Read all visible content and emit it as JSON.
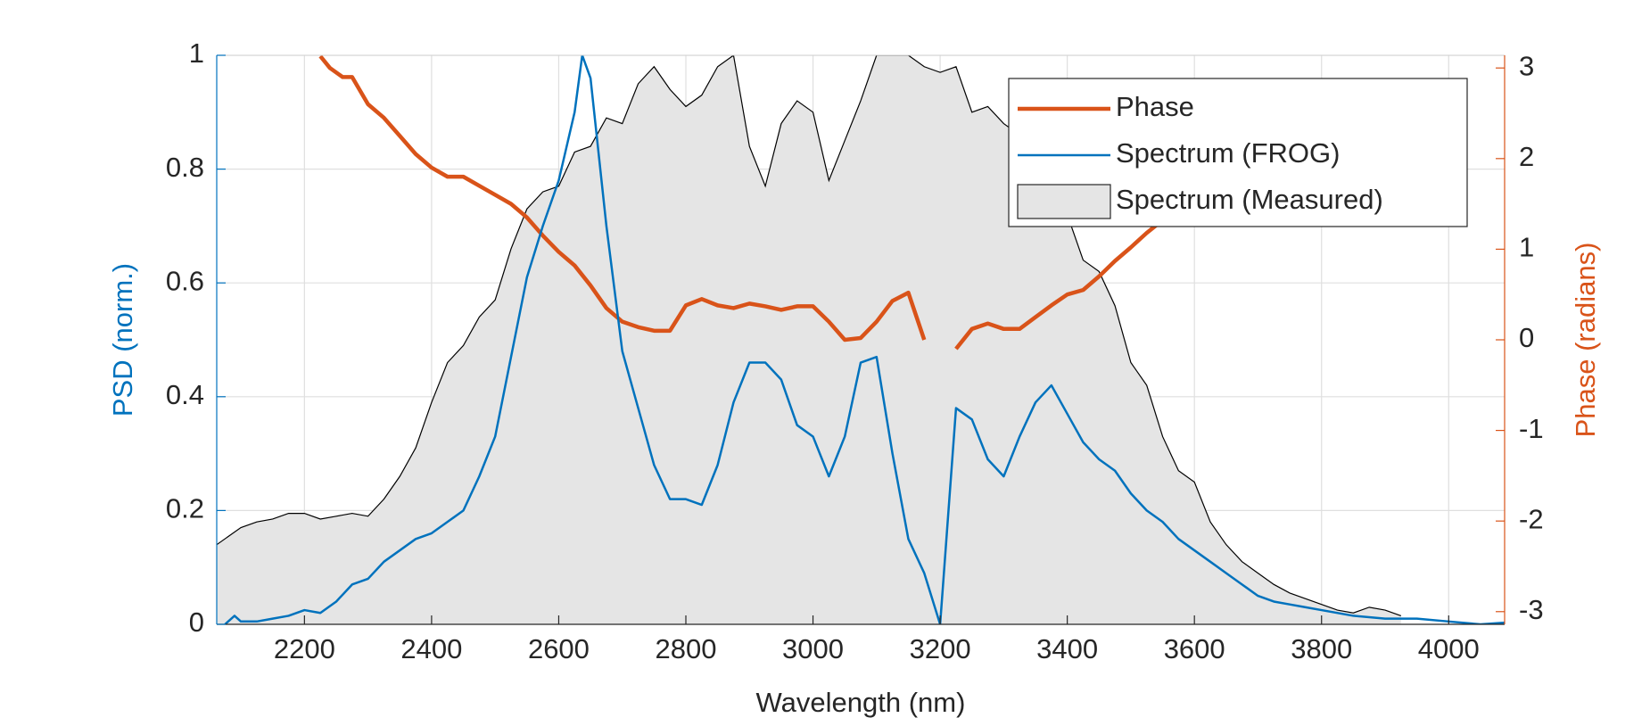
{
  "chart_data": {
    "type": "line",
    "xlabel": "Wavelength (nm)",
    "ylabel": "PSD (norm.)",
    "y2label": "Phase (radians)",
    "xlim": [
      2062,
      4088
    ],
    "xticks": [
      2200,
      2400,
      2600,
      2800,
      3000,
      3200,
      3400,
      3600,
      3800,
      4000
    ],
    "ylim": [
      0,
      1
    ],
    "yticks": [
      0,
      0.2,
      0.4,
      0.6,
      0.8,
      1
    ],
    "y2lim": [
      -3.14,
      3.14
    ],
    "y2ticks": [
      -3,
      -2,
      -1,
      0,
      1,
      2,
      3
    ],
    "grid": true,
    "legend": "northeast",
    "ycolor": "#0072bd",
    "y2color": "#d95319",
    "series": [
      {
        "name": "Phase",
        "color": "#d95319",
        "axis": "y2",
        "style": "line",
        "x": [
          2225,
          2240,
          2260,
          2275,
          2300,
          2325,
          2350,
          2375,
          2400,
          2425,
          2450,
          2475,
          2500,
          2525,
          2550,
          2575,
          2600,
          2625,
          2650,
          2675,
          2700,
          2725,
          2750,
          2775,
          2800,
          2825,
          2850,
          2875,
          2900,
          2925,
          2950,
          2975,
          3000,
          3025,
          3050,
          3075,
          3100,
          3125,
          3150,
          3175,
          3200,
          3225,
          3250,
          3275,
          3300,
          3325,
          3350,
          3375,
          3400,
          3425,
          3450,
          3475,
          3500,
          3525,
          3550,
          3575,
          3600
        ],
        "values": [
          3.13,
          3.0,
          2.9,
          2.9,
          2.6,
          2.45,
          2.25,
          2.05,
          1.9,
          1.8,
          1.8,
          1.7,
          1.6,
          1.5,
          1.35,
          1.15,
          0.97,
          0.82,
          0.6,
          0.35,
          0.2,
          0.14,
          0.1,
          0.1,
          0.38,
          0.45,
          0.38,
          0.35,
          0.4,
          0.37,
          0.33,
          0.37,
          0.37,
          0.2,
          0.0,
          0.02,
          0.2,
          0.43,
          0.52,
          0.0,
          null,
          -0.1,
          0.12,
          0.18,
          0.12,
          0.12,
          0.25,
          0.38,
          0.5,
          0.55,
          0.7,
          0.87,
          1.02,
          1.18,
          1.32,
          1.45,
          1.6
        ]
      },
      {
        "name": "Spectrum (FROG)",
        "color": "#0072bd",
        "axis": "y",
        "style": "line",
        "x": [
          2075,
          2090,
          2100,
          2125,
          2150,
          2175,
          2200,
          2225,
          2250,
          2275,
          2300,
          2325,
          2350,
          2375,
          2400,
          2425,
          2450,
          2475,
          2500,
          2525,
          2550,
          2575,
          2600,
          2625,
          2637,
          2650,
          2675,
          2700,
          2725,
          2750,
          2775,
          2800,
          2825,
          2850,
          2875,
          2900,
          2925,
          2950,
          2975,
          3000,
          3025,
          3050,
          3075,
          3100,
          3125,
          3150,
          3175,
          3200,
          3225,
          3250,
          3275,
          3300,
          3325,
          3350,
          3375,
          3400,
          3425,
          3450,
          3475,
          3500,
          3525,
          3550,
          3575,
          3600,
          3625,
          3650,
          3675,
          3700,
          3725,
          3750,
          3775,
          3800,
          3850,
          3900,
          3950,
          4000,
          4050,
          4088
        ],
        "values": [
          0.0,
          0.015,
          0.005,
          0.005,
          0.01,
          0.015,
          0.025,
          0.02,
          0.04,
          0.07,
          0.08,
          0.11,
          0.13,
          0.15,
          0.16,
          0.18,
          0.2,
          0.26,
          0.33,
          0.47,
          0.61,
          0.7,
          0.78,
          0.9,
          1.0,
          0.96,
          0.7,
          0.48,
          0.38,
          0.28,
          0.22,
          0.22,
          0.21,
          0.28,
          0.39,
          0.46,
          0.46,
          0.43,
          0.35,
          0.33,
          0.26,
          0.33,
          0.46,
          0.47,
          0.3,
          0.15,
          0.09,
          0.0,
          0.38,
          0.36,
          0.29,
          0.26,
          0.33,
          0.39,
          0.42,
          0.37,
          0.32,
          0.29,
          0.27,
          0.23,
          0.2,
          0.18,
          0.15,
          0.13,
          0.11,
          0.09,
          0.07,
          0.05,
          0.04,
          0.035,
          0.03,
          0.025,
          0.015,
          0.01,
          0.01,
          0.005,
          0.0,
          0.003
        ]
      },
      {
        "name": "Spectrum (Measured)",
        "color": "#e5e5e5",
        "axis": "y",
        "style": "area",
        "x": [
          2062,
          2100,
          2125,
          2150,
          2175,
          2200,
          2225,
          2250,
          2275,
          2300,
          2325,
          2350,
          2375,
          2400,
          2425,
          2450,
          2475,
          2500,
          2525,
          2550,
          2575,
          2600,
          2625,
          2650,
          2675,
          2700,
          2725,
          2750,
          2775,
          2800,
          2825,
          2850,
          2875,
          2900,
          2925,
          2950,
          2975,
          3000,
          3025,
          3050,
          3075,
          3100,
          3125,
          3150,
          3175,
          3200,
          3225,
          3250,
          3275,
          3300,
          3325,
          3350,
          3375,
          3400,
          3425,
          3450,
          3475,
          3500,
          3525,
          3550,
          3575,
          3600,
          3625,
          3650,
          3675,
          3700,
          3725,
          3750,
          3775,
          3800,
          3825,
          3850,
          3875,
          3900,
          3925
        ],
        "values": [
          0.14,
          0.17,
          0.18,
          0.185,
          0.195,
          0.195,
          0.185,
          0.19,
          0.195,
          0.19,
          0.22,
          0.26,
          0.31,
          0.39,
          0.46,
          0.49,
          0.54,
          0.57,
          0.66,
          0.73,
          0.76,
          0.77,
          0.83,
          0.84,
          0.89,
          0.88,
          0.95,
          0.98,
          0.94,
          0.91,
          0.93,
          0.98,
          1.0,
          0.84,
          0.77,
          0.88,
          0.92,
          0.9,
          0.78,
          0.85,
          0.92,
          1.0,
          1.0,
          1.0,
          0.98,
          0.97,
          0.98,
          0.9,
          0.91,
          0.88,
          0.86,
          0.82,
          0.78,
          0.72,
          0.64,
          0.62,
          0.56,
          0.46,
          0.42,
          0.33,
          0.27,
          0.25,
          0.18,
          0.14,
          0.11,
          0.09,
          0.07,
          0.055,
          0.045,
          0.035,
          0.025,
          0.02,
          0.03,
          0.025,
          0.015
        ]
      }
    ]
  }
}
